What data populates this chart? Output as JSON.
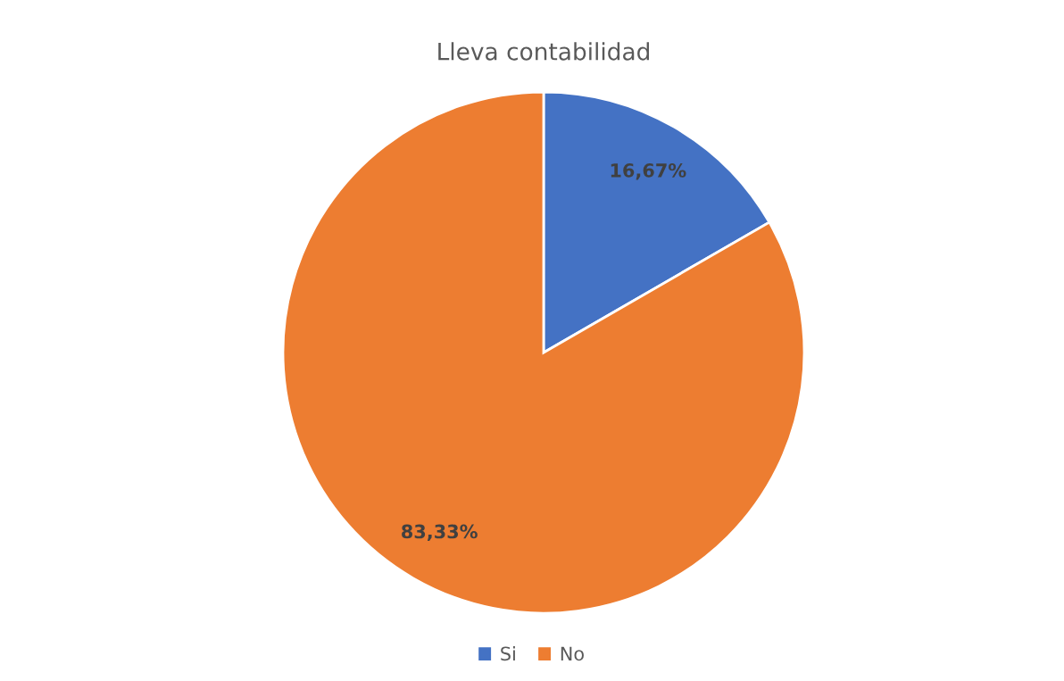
{
  "chart_data": {
    "type": "pie",
    "title": "Lleva contabilidad",
    "categories": [
      "Si",
      "No"
    ],
    "values": [
      16.67,
      83.33
    ],
    "colors": [
      "#4472c4",
      "#ed7d31"
    ],
    "value_labels": [
      "16,67%",
      "83,33%"
    ],
    "legend": "bottom"
  }
}
